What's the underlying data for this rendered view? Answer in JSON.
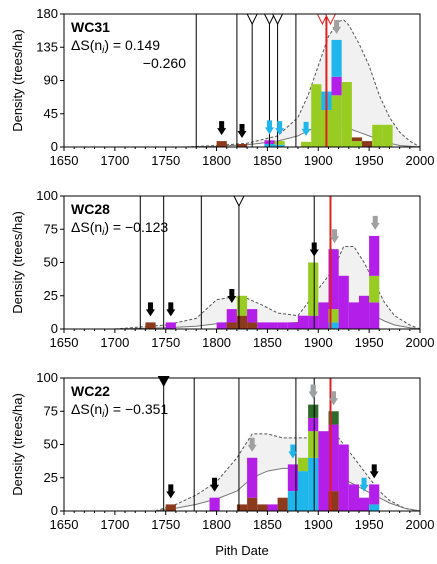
{
  "chart_data": {
    "type": "bar",
    "xlabel": "Pith Date",
    "xlim": [
      1650,
      2000
    ],
    "x_ticks": [
      "1650",
      "1700",
      "1750",
      "1800",
      "1850",
      "1900",
      "1950",
      "2000"
    ],
    "bin_width": 10,
    "colors": {
      "brown": "#8b3a1c",
      "green": "#99cc22",
      "purple": "#b31ee8",
      "cyan": "#1fb6ec",
      "darkgreen": "#2f6b2a",
      "red": "#e02020",
      "gray_arrow": "#a0a0a0",
      "envelope": "#f1f1f1"
    },
    "panels": [
      {
        "title": "WC31",
        "stat_label": "ΔS(n",
        "stat_sub": "i",
        "stat_value": ") = 0.149",
        "stat_value2": "−0.260",
        "ylabel": "Density (trees/ha)",
        "ylim": [
          0,
          180
        ],
        "y_ticks": [
          0,
          45,
          90,
          135,
          180
        ],
        "event_lines": [
          1780,
          1820,
          1835,
          1852,
          1860,
          1878
        ],
        "red_lines": [
          1908
        ],
        "open_triangles": [
          1835,
          1852,
          1860,
          1904,
          1912
        ],
        "filled_triangles": [],
        "black_arrows": [
          1805,
          1825
        ],
        "cyan_arrows": [
          1852,
          1862,
          1888
        ],
        "gray_arrows": [
          1918
        ],
        "bars": [
          {
            "x": 1805,
            "stack": [
              [
                "brown",
                8
              ]
            ]
          },
          {
            "x": 1825,
            "stack": [
              [
                "brown",
                4
              ]
            ]
          },
          {
            "x": 1852,
            "stack": [
              [
                "cyan",
                4
              ],
              [
                "purple",
                5
              ]
            ]
          },
          {
            "x": 1862,
            "stack": [
              [
                "cyan",
                3
              ],
              [
                "green",
                5
              ]
            ]
          },
          {
            "x": 1888,
            "stack": [
              [
                "green",
                7
              ]
            ]
          },
          {
            "x": 1898,
            "stack": [
              [
                "green",
                85
              ]
            ]
          },
          {
            "x": 1908,
            "stack": [
              [
                "green",
                50
              ],
              [
                "cyan",
                25
              ]
            ]
          },
          {
            "x": 1918,
            "stack": [
              [
                "green",
                70
              ],
              [
                "purple",
                25
              ],
              [
                "cyan",
                50
              ]
            ]
          },
          {
            "x": 1928,
            "stack": [
              [
                "green",
                88
              ]
            ]
          },
          {
            "x": 1938,
            "stack": [
              [
                "green",
                8
              ],
              [
                "brown",
                5
              ]
            ]
          },
          {
            "x": 1948,
            "stack": [
              [
                "brown",
                8
              ]
            ]
          },
          {
            "x": 1958,
            "stack": [
              [
                "green",
                30
              ]
            ]
          },
          {
            "x": 1968,
            "stack": [
              [
                "green",
                30
              ]
            ]
          }
        ],
        "envelope_x": [
          1770,
          1800,
          1830,
          1860,
          1880,
          1890,
          1900,
          1910,
          1920,
          1925,
          1930,
          1940,
          1950,
          1960,
          1970,
          1980,
          1990,
          2000
        ],
        "envelope_upper": [
          0,
          2,
          5,
          15,
          40,
          70,
          110,
          150,
          170,
          172,
          165,
          140,
          110,
          70,
          40,
          20,
          8,
          0
        ],
        "envelope_lower": [
          0,
          1,
          3,
          8,
          15,
          22,
          28,
          30,
          30,
          28,
          25,
          20,
          15,
          10,
          5,
          2,
          1,
          0
        ]
      },
      {
        "title": "WC28",
        "stat_label": "ΔS(n",
        "stat_sub": "i",
        "stat_value": ") = −0.123",
        "stat_value2": "",
        "ylabel": "Density (trees/ha)",
        "ylim": [
          0,
          100
        ],
        "y_ticks": [
          0,
          25,
          50,
          75,
          100
        ],
        "event_lines": [
          1725,
          1748,
          1785,
          1822,
          1896,
          1912
        ],
        "red_lines": [
          1912
        ],
        "open_triangles": [
          1822
        ],
        "filled_triangles": [],
        "black_arrows": [
          1735,
          1755,
          1815,
          1896
        ],
        "cyan_arrows": [],
        "gray_arrows": [
          1916,
          1956
        ],
        "bars": [
          {
            "x": 1735,
            "stack": [
              [
                "brown",
                5
              ]
            ]
          },
          {
            "x": 1755,
            "stack": [
              [
                "purple",
                5
              ]
            ]
          },
          {
            "x": 1805,
            "stack": [
              [
                "purple",
                5
              ]
            ]
          },
          {
            "x": 1815,
            "stack": [
              [
                "brown",
                5
              ],
              [
                "purple",
                10
              ]
            ]
          },
          {
            "x": 1825,
            "stack": [
              [
                "brown",
                10
              ],
              [
                "green",
                15
              ]
            ]
          },
          {
            "x": 1835,
            "stack": [
              [
                "brown",
                5
              ],
              [
                "purple",
                10
              ]
            ]
          },
          {
            "x": 1845,
            "stack": [
              [
                "purple",
                5
              ]
            ]
          },
          {
            "x": 1855,
            "stack": [
              [
                "purple",
                5
              ]
            ]
          },
          {
            "x": 1865,
            "stack": [
              [
                "purple",
                5
              ]
            ]
          },
          {
            "x": 1875,
            "stack": [
              [
                "purple",
                5
              ]
            ]
          },
          {
            "x": 1885,
            "stack": [
              [
                "purple",
                10
              ]
            ]
          },
          {
            "x": 1895,
            "stack": [
              [
                "purple",
                10
              ],
              [
                "green",
                40
              ]
            ]
          },
          {
            "x": 1905,
            "stack": [
              [
                "purple",
                20
              ]
            ]
          },
          {
            "x": 1915,
            "stack": [
              [
                "cyan",
                5
              ],
              [
                "green",
                10
              ],
              [
                "purple",
                45
              ]
            ]
          },
          {
            "x": 1925,
            "stack": [
              [
                "purple",
                40
              ]
            ]
          },
          {
            "x": 1935,
            "stack": [
              [
                "purple",
                20
              ]
            ]
          },
          {
            "x": 1945,
            "stack": [
              [
                "purple",
                25
              ]
            ]
          },
          {
            "x": 1955,
            "stack": [
              [
                "purple",
                20
              ],
              [
                "green",
                20
              ],
              [
                "purple",
                30
              ]
            ]
          }
        ],
        "envelope_x": [
          1700,
          1750,
          1780,
          1800,
          1815,
          1830,
          1845,
          1860,
          1880,
          1900,
          1915,
          1925,
          1935,
          1945,
          1955,
          1965,
          1975,
          1990,
          2000
        ],
        "envelope_upper": [
          0,
          3,
          8,
          22,
          24,
          23,
          18,
          12,
          10,
          30,
          45,
          62,
          62,
          50,
          35,
          20,
          10,
          3,
          0
        ],
        "envelope_lower": [
          0,
          1,
          2,
          4,
          5,
          5,
          4,
          4,
          5,
          8,
          12,
          15,
          14,
          12,
          10,
          6,
          3,
          1,
          0
        ]
      },
      {
        "title": "WC22",
        "stat_label": "ΔS(n",
        "stat_sub": "i",
        "stat_value": ") = −0.351",
        "stat_value2": "",
        "ylabel": "Density (trees/ha)",
        "ylim": [
          0,
          100
        ],
        "y_ticks": [
          0,
          25,
          50,
          75,
          100
        ],
        "event_lines": [
          1748,
          1778,
          1822,
          1878,
          1896,
          1912
        ],
        "red_lines": [
          1912
        ],
        "open_triangles": [],
        "filled_triangles": [
          1748
        ],
        "black_arrows": [
          1755,
          1798,
          1955
        ],
        "cyan_arrows": [
          1875,
          1895,
          1945
        ],
        "gray_arrows": [
          1835,
          1895,
          1915
        ],
        "bars": [
          {
            "x": 1755,
            "stack": [
              [
                "brown",
                5
              ]
            ]
          },
          {
            "x": 1798,
            "stack": [
              [
                "purple",
                10
              ]
            ]
          },
          {
            "x": 1825,
            "stack": [
              [
                "brown",
                5
              ]
            ]
          },
          {
            "x": 1835,
            "stack": [
              [
                "brown",
                10
              ],
              [
                "purple",
                30
              ]
            ]
          },
          {
            "x": 1845,
            "stack": [
              [
                "brown",
                5
              ]
            ]
          },
          {
            "x": 1855,
            "stack": [
              [
                "purple",
                5
              ]
            ]
          },
          {
            "x": 1865,
            "stack": [
              [
                "brown",
                10
              ]
            ]
          },
          {
            "x": 1875,
            "stack": [
              [
                "cyan",
                15
              ],
              [
                "purple",
                20
              ]
            ]
          },
          {
            "x": 1885,
            "stack": [
              [
                "cyan",
                30
              ],
              [
                "green",
                10
              ]
            ]
          },
          {
            "x": 1895,
            "stack": [
              [
                "cyan",
                40
              ],
              [
                "green",
                20
              ],
              [
                "purple",
                10
              ],
              [
                "darkgreen",
                10
              ]
            ]
          },
          {
            "x": 1905,
            "stack": [
              [
                "purple",
                60
              ]
            ]
          },
          {
            "x": 1915,
            "stack": [
              [
                "brown",
                15
              ],
              [
                "purple",
                50
              ],
              [
                "darkgreen",
                10
              ]
            ]
          },
          {
            "x": 1925,
            "stack": [
              [
                "purple",
                50
              ]
            ]
          },
          {
            "x": 1935,
            "stack": [
              [
                "purple",
                20
              ]
            ]
          },
          {
            "x": 1945,
            "stack": [
              [
                "purple",
                10
              ]
            ]
          },
          {
            "x": 1955,
            "stack": [
              [
                "cyan",
                5
              ],
              [
                "purple",
                15
              ]
            ]
          }
        ],
        "envelope_x": [
          1740,
          1760,
          1780,
          1800,
          1820,
          1835,
          1850,
          1865,
          1880,
          1895,
          1910,
          1920,
          1930,
          1940,
          1950,
          1960,
          1970,
          1985,
          2000
        ],
        "envelope_upper": [
          0,
          5,
          12,
          22,
          40,
          58,
          58,
          55,
          55,
          55,
          58,
          55,
          45,
          35,
          25,
          15,
          8,
          2,
          0
        ],
        "envelope_lower": [
          0,
          2,
          5,
          9,
          15,
          25,
          30,
          32,
          32,
          30,
          28,
          26,
          22,
          18,
          14,
          10,
          6,
          2,
          0
        ]
      }
    ]
  }
}
